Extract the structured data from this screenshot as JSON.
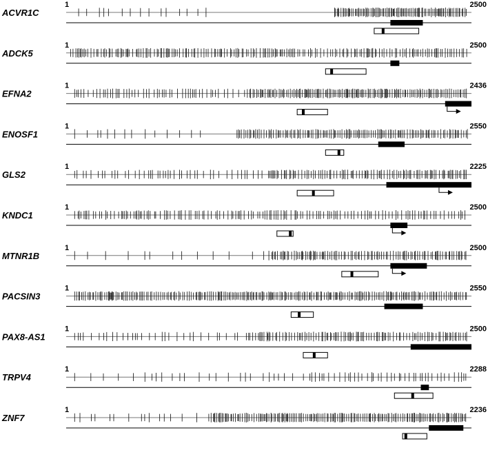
{
  "figure": {
    "tracks": [
      {
        "gene": "ACVR1C",
        "start_label": "1",
        "end_label": "2500",
        "seed": 11,
        "ticks": [
          [
            0.03,
            0.36,
            0.5
          ],
          [
            0.66,
            0.99,
            3.5
          ]
        ],
        "upper_boxes": [
          {
            "from": 0.8,
            "to": 0.88
          }
        ],
        "lower_boxes": [
          {
            "from": 0.76,
            "to": 0.87,
            "mark": 0.782
          }
        ],
        "arrow_at": null
      },
      {
        "gene": "ADCK5",
        "start_label": "1",
        "end_label": "2500",
        "seed": 23,
        "ticks": [
          [
            0.01,
            0.99,
            2.2
          ]
        ],
        "upper_boxes": [
          {
            "from": 0.8,
            "to": 0.822
          }
        ],
        "lower_boxes": [
          {
            "from": 0.64,
            "to": 0.74,
            "mark": 0.655
          }
        ],
        "arrow_at": null
      },
      {
        "gene": "EFNA2",
        "start_label": "1",
        "end_label": "2436",
        "seed": 37,
        "ticks": [
          [
            0.02,
            0.45,
            1.3
          ],
          [
            0.45,
            0.99,
            3.3
          ]
        ],
        "upper_boxes": [
          {
            "from": 0.935,
            "to": 1.0
          }
        ],
        "lower_boxes": [
          {
            "from": 0.57,
            "to": 0.645,
            "mark": 0.585
          }
        ],
        "arrow_at": 0.94
      },
      {
        "gene": "ENOSF1",
        "start_label": "1",
        "end_label": "2550",
        "seed": 41,
        "ticks": [
          [
            0.02,
            0.35,
            0.6
          ],
          [
            0.42,
            0.99,
            2.8
          ]
        ],
        "upper_boxes": [
          {
            "from": 0.77,
            "to": 0.835
          }
        ],
        "lower_boxes": [
          {
            "from": 0.64,
            "to": 0.685,
            "mark": 0.673
          }
        ],
        "arrow_at": null
      },
      {
        "gene": "GLS2",
        "start_label": "1",
        "end_label": "2225",
        "seed": 53,
        "ticks": [
          [
            0.02,
            0.5,
            1.0
          ],
          [
            0.5,
            0.99,
            2.3
          ]
        ],
        "upper_boxes": [
          {
            "from": 0.79,
            "to": 1.0
          }
        ],
        "lower_boxes": [
          {
            "from": 0.57,
            "to": 0.66,
            "mark": 0.61
          }
        ],
        "arrow_at": 0.92
      },
      {
        "gene": "KNDC1",
        "start_label": "1",
        "end_label": "2500",
        "seed": 67,
        "ticks": [
          [
            0.02,
            0.99,
            1.8
          ]
        ],
        "upper_boxes": [
          {
            "from": 0.8,
            "to": 0.842
          }
        ],
        "lower_boxes": [
          {
            "from": 0.52,
            "to": 0.56,
            "mark": 0.553
          }
        ],
        "arrow_at": 0.805
      },
      {
        "gene": "MTNR1B",
        "start_label": "1",
        "end_label": "2500",
        "seed": 71,
        "ticks": [
          [
            0.02,
            0.5,
            0.35
          ],
          [
            0.5,
            0.99,
            2.6
          ]
        ],
        "upper_boxes": [
          {
            "from": 0.8,
            "to": 0.89
          }
        ],
        "lower_boxes": [
          {
            "from": 0.68,
            "to": 0.77,
            "mark": 0.705
          }
        ],
        "arrow_at": 0.805
      },
      {
        "gene": "PACSIN3",
        "start_label": "1",
        "end_label": "2550",
        "seed": 83,
        "ticks": [
          [
            0.02,
            0.99,
            3.0
          ]
        ],
        "upper_boxes": [
          {
            "from": 0.785,
            "to": 0.88
          }
        ],
        "lower_boxes": [
          {
            "from": 0.555,
            "to": 0.61,
            "mark": 0.575
          }
        ],
        "arrow_at": null
      },
      {
        "gene": "PAX8-AS1",
        "start_label": "1",
        "end_label": "2500",
        "seed": 97,
        "ticks": [
          [
            0.02,
            0.45,
            0.9
          ],
          [
            0.45,
            0.99,
            2.5
          ]
        ],
        "upper_boxes": [
          {
            "from": 0.85,
            "to": 1.0
          }
        ],
        "lower_boxes": [
          {
            "from": 0.585,
            "to": 0.645,
            "mark": 0.612
          }
        ],
        "arrow_at": null
      },
      {
        "gene": "TRPV4",
        "start_label": "1",
        "end_label": "2288",
        "seed": 101,
        "ticks": [
          [
            0.02,
            0.6,
            0.5
          ],
          [
            0.6,
            0.99,
            1.4
          ]
        ],
        "upper_boxes": [
          {
            "from": 0.875,
            "to": 0.895
          }
        ],
        "lower_boxes": [
          {
            "from": 0.81,
            "to": 0.905,
            "mark": 0.855
          }
        ],
        "arrow_at": null
      },
      {
        "gene": "ZNF7",
        "start_label": "1",
        "end_label": "2236",
        "seed": 113,
        "ticks": [
          [
            0.02,
            0.35,
            0.55
          ],
          [
            0.35,
            0.99,
            3.2
          ]
        ],
        "upper_boxes": [
          {
            "from": 0.895,
            "to": 0.98
          }
        ],
        "lower_boxes": [
          {
            "from": 0.83,
            "to": 0.89,
            "mark": 0.838
          }
        ],
        "arrow_at": null
      }
    ]
  }
}
